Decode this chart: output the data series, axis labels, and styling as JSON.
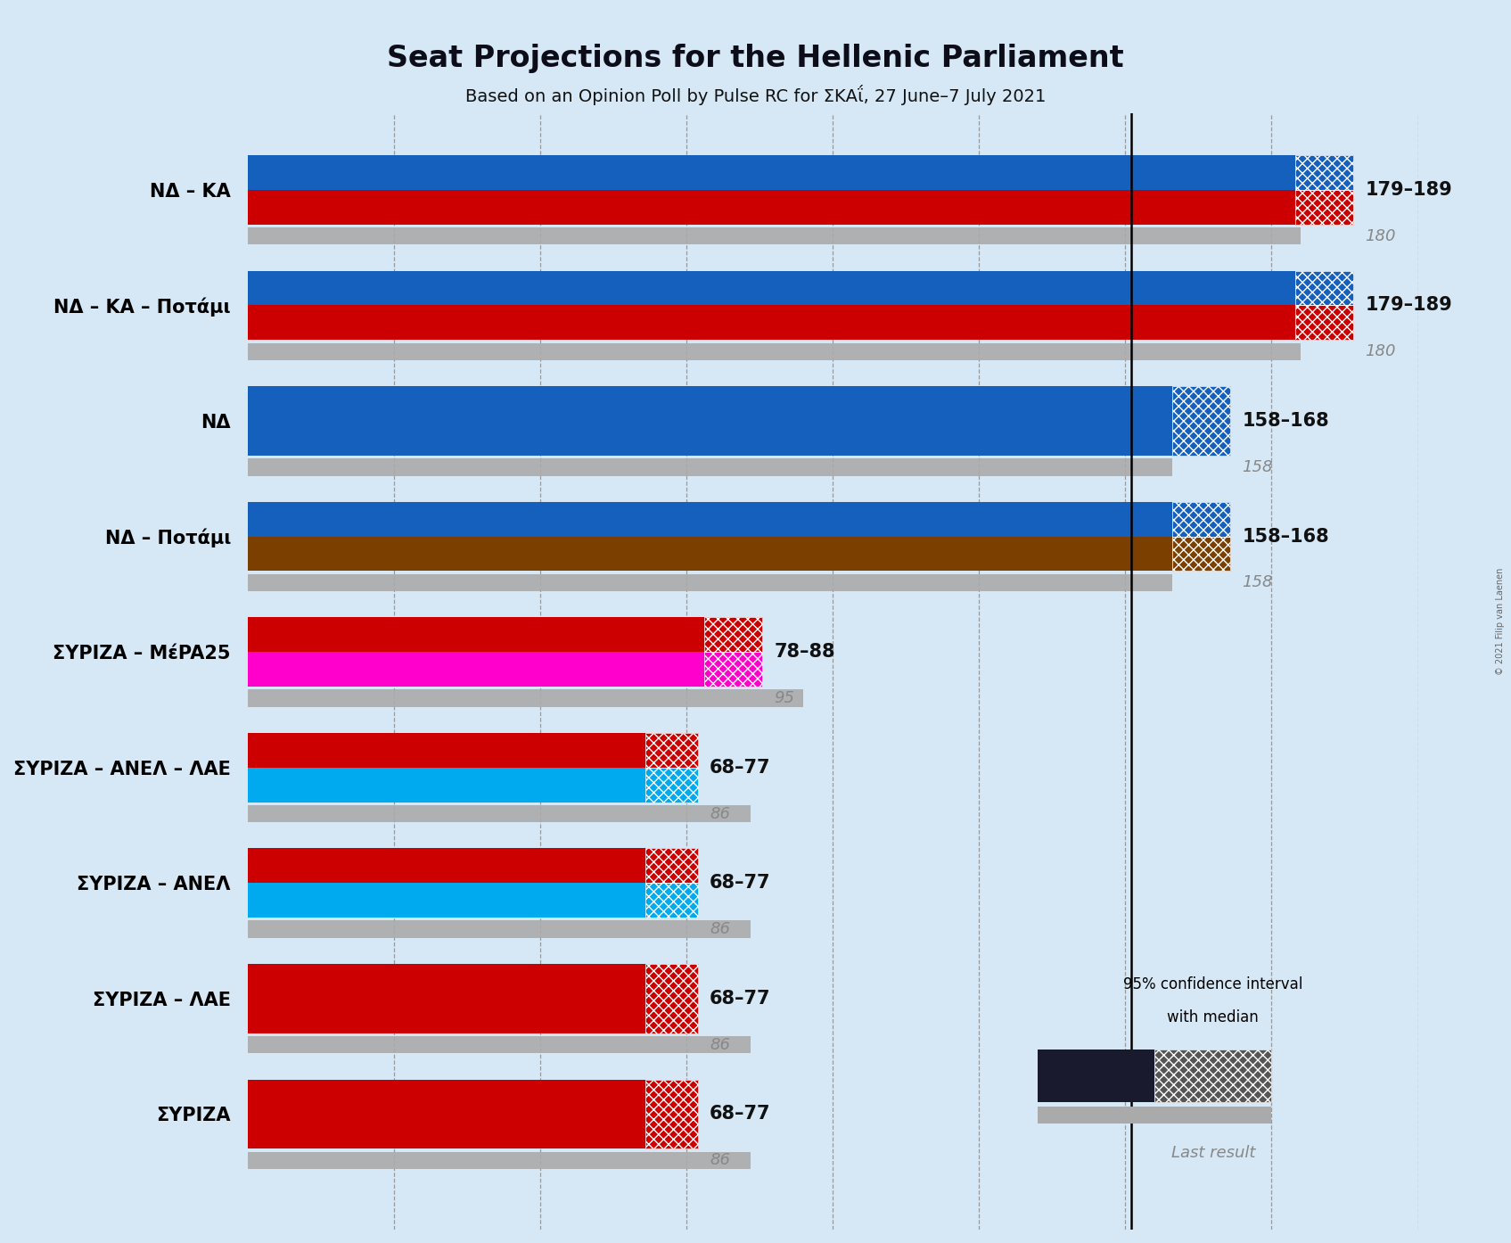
{
  "title": "Seat Projections for the Hellenic Parliament",
  "subtitle": "Based on an Opinion Poll by Pulse RC for ΣΚΑΐ, 27 June–7 July 2021",
  "copyright": "© 2021 Filip van Laenen",
  "background_color": "#d6e8f5",
  "coalitions": [
    {
      "label": "ΝΔ – ΚΑ",
      "ci_low": 179,
      "ci_high": 189,
      "median": 180,
      "last_result": 180,
      "bar_colors": [
        "#1560bd",
        "#cc0000"
      ],
      "hatch_colors": [
        "#1560bd",
        "#cc0000"
      ],
      "underline": false
    },
    {
      "label": "ΝΔ – ΚΑ – Ποτάμι",
      "ci_low": 179,
      "ci_high": 189,
      "median": 180,
      "last_result": 180,
      "bar_colors": [
        "#1560bd",
        "#cc0000"
      ],
      "hatch_colors": [
        "#1560bd",
        "#cc0000"
      ],
      "underline": false
    },
    {
      "label": "ΝΔ",
      "ci_low": 158,
      "ci_high": 168,
      "median": 158,
      "last_result": 158,
      "bar_colors": [
        "#1560bd"
      ],
      "hatch_colors": [
        "#1560bd"
      ],
      "underline": true
    },
    {
      "label": "ΝΔ – Ποτάμι",
      "ci_low": 158,
      "ci_high": 168,
      "median": 158,
      "last_result": 158,
      "bar_colors": [
        "#1560bd",
        "#7b3f00"
      ],
      "hatch_colors": [
        "#1560bd",
        "#7b3f00"
      ],
      "underline": false
    },
    {
      "label": "ΣΥΡΙΖΑ – ΜέPA25",
      "ci_low": 78,
      "ci_high": 88,
      "median": 95,
      "last_result": 95,
      "bar_colors": [
        "#cc0000",
        "#ff00cc"
      ],
      "hatch_colors": [
        "#cc0000",
        "#ff00cc"
      ],
      "underline": false
    },
    {
      "label": "ΣΥΡΙΖΑ – ΑΝΕΛ – ΛΑΕ",
      "ci_low": 68,
      "ci_high": 77,
      "median": 86,
      "last_result": 86,
      "bar_colors": [
        "#cc0000",
        "#00aaee"
      ],
      "hatch_colors": [
        "#cc0000",
        "#00aaee"
      ],
      "underline": false
    },
    {
      "label": "ΣΥΡΙΖΑ – ΑΝΕΛ",
      "ci_low": 68,
      "ci_high": 77,
      "median": 86,
      "last_result": 86,
      "bar_colors": [
        "#cc0000",
        "#00aaee"
      ],
      "hatch_colors": [
        "#cc0000",
        "#00aaee"
      ],
      "underline": false
    },
    {
      "label": "ΣΥΡΙΖΑ – ΛΑΕ",
      "ci_low": 68,
      "ci_high": 77,
      "median": 86,
      "last_result": 86,
      "bar_colors": [
        "#cc0000"
      ],
      "hatch_colors": [
        "#cc0000"
      ],
      "underline": false
    },
    {
      "label": "ΣΥΡΙΖΑ",
      "ci_low": 68,
      "ci_high": 77,
      "median": 86,
      "last_result": 86,
      "bar_colors": [
        "#cc0000"
      ],
      "hatch_colors": [
        "#cc0000"
      ],
      "underline": false
    }
  ],
  "xmax": 200,
  "majority_line": 151,
  "gridlines": [
    25,
    50,
    75,
    100,
    125,
    150,
    175,
    200
  ],
  "legend_ci_color": "#1a1a2e",
  "legend_hatch_color": "#555555",
  "legend_last_color": "#aaaaaa"
}
